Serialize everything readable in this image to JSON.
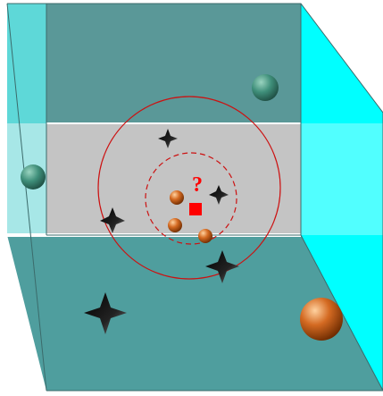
{
  "query_marker": {
    "label": "?",
    "color": "#ff0000"
  },
  "colors": {
    "back_wall": "#5a9898",
    "side_wall": "#00ffff",
    "floor": "#4f9e9e",
    "slice_band": "#c4c4c4",
    "slice_edge": "#ffffff",
    "circles": "#cc1111",
    "query_square": "#ff0000",
    "star": "#000000",
    "sphere_teal": "#3f8f7a",
    "sphere_orange": "#c8621a"
  },
  "icons": {
    "star": "four-point-star-icon",
    "sphere": "sphere-icon",
    "query": "red-square-icon"
  }
}
